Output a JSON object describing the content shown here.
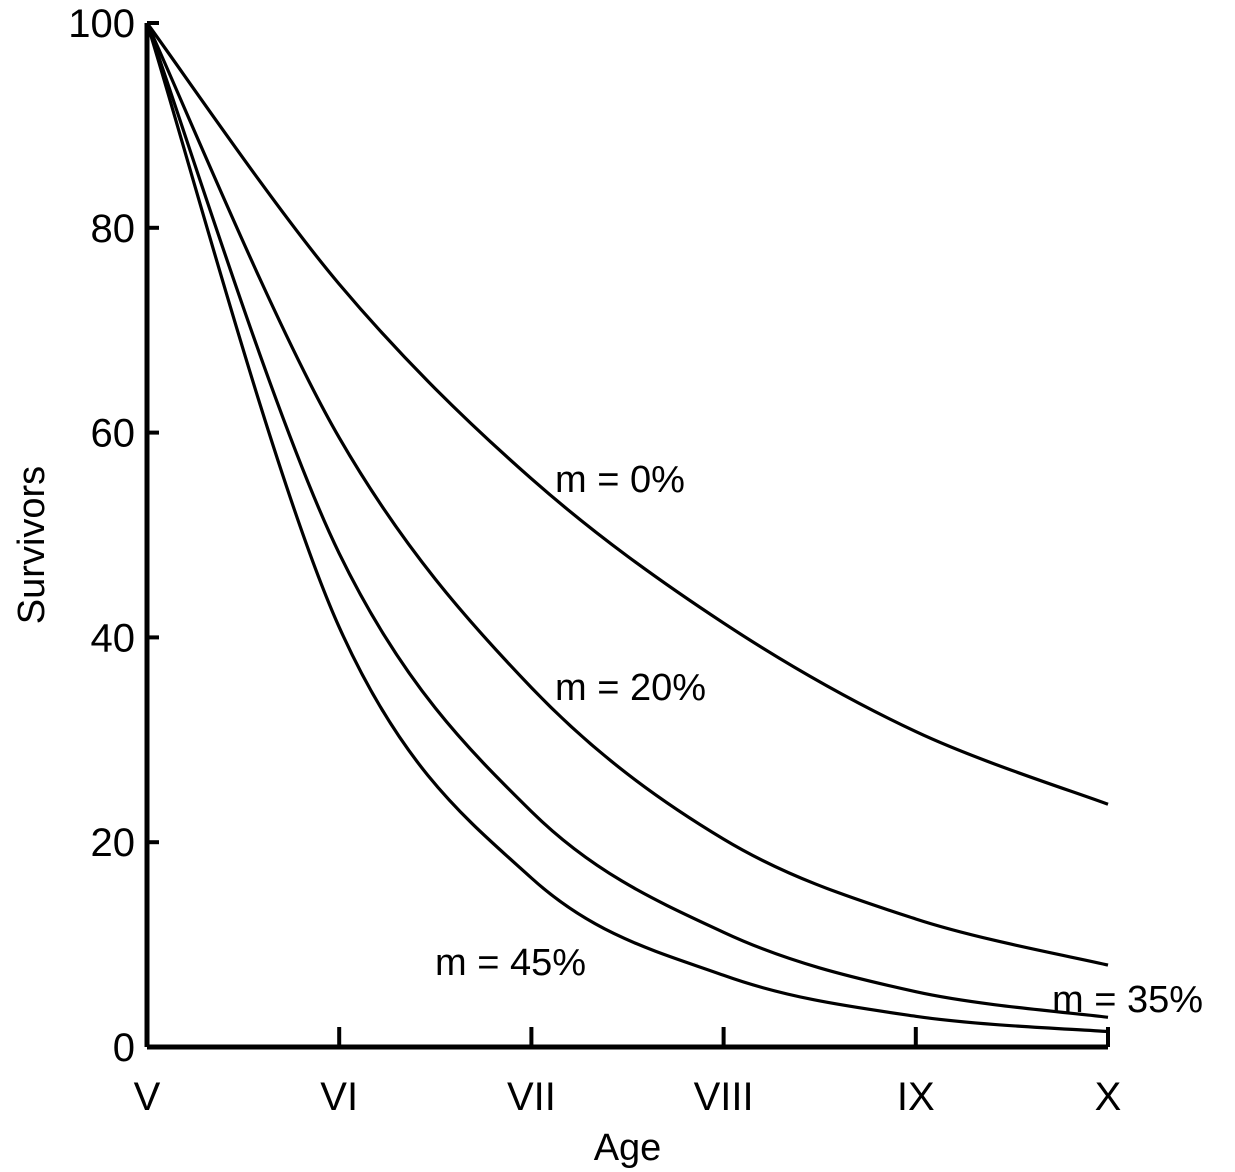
{
  "chart_data": {
    "type": "line",
    "title": "",
    "xlabel": "Age",
    "ylabel": "Survivors",
    "x_tick_labels": [
      "V",
      "VI",
      "VII",
      "VIII",
      "IX",
      "X"
    ],
    "y_ticks": [
      0,
      20,
      40,
      60,
      80,
      100
    ],
    "ylim": [
      0,
      100
    ],
    "grid": false,
    "colors": {
      "line": "#000000",
      "background": "#ffffff"
    },
    "series": [
      {
        "name": "m = 0%",
        "values": [
          100,
          74.5,
          55.5,
          41.4,
          30.8,
          23.7
        ]
      },
      {
        "name": "m = 20%",
        "values": [
          100,
          59.5,
          35.1,
          20.3,
          12.5,
          8.0
        ]
      },
      {
        "name": "m = 35%",
        "values": [
          100,
          48.2,
          23.0,
          11.2,
          5.4,
          2.9
        ]
      },
      {
        "name": "m = 45%",
        "values": [
          100,
          41.0,
          16.5,
          7.0,
          3.0,
          1.5
        ]
      }
    ]
  }
}
